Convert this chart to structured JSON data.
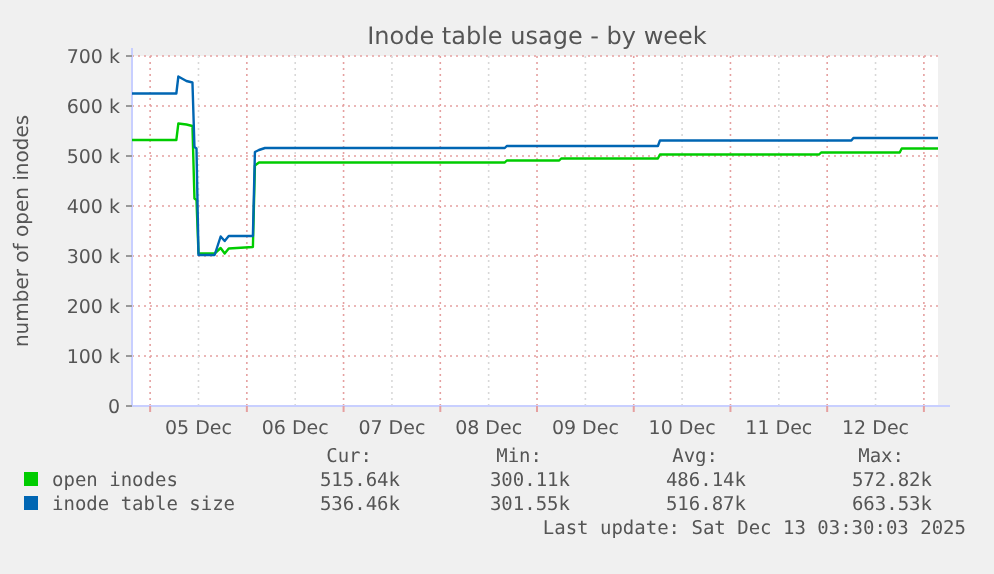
{
  "chart_data": {
    "type": "line",
    "title": "Inode table usage - by week",
    "ylabel": "number of open inodes",
    "legend": "bottom",
    "grid": true,
    "line_style": "solid",
    "xlim": [
      "2025-12-04T19:30",
      "2025-12-13T03:30"
    ],
    "xticks": [
      {
        "value": "2025-12-05T00:00",
        "label": null
      },
      {
        "value": "2025-12-05T12:00",
        "label": "05 Dec"
      },
      {
        "value": "2025-12-06T00:00",
        "label": null
      },
      {
        "value": "2025-12-06T12:00",
        "label": "06 Dec"
      },
      {
        "value": "2025-12-07T00:00",
        "label": null
      },
      {
        "value": "2025-12-07T12:00",
        "label": "07 Dec"
      },
      {
        "value": "2025-12-08T00:00",
        "label": null
      },
      {
        "value": "2025-12-08T12:00",
        "label": "08 Dec"
      },
      {
        "value": "2025-12-09T00:00",
        "label": null
      },
      {
        "value": "2025-12-09T12:00",
        "label": "09 Dec"
      },
      {
        "value": "2025-12-10T00:00",
        "label": null
      },
      {
        "value": "2025-12-10T12:00",
        "label": "10 Dec"
      },
      {
        "value": "2025-12-11T00:00",
        "label": null
      },
      {
        "value": "2025-12-11T12:00",
        "label": "11 Dec"
      },
      {
        "value": "2025-12-12T00:00",
        "label": null
      },
      {
        "value": "2025-12-12T12:00",
        "label": "12 Dec"
      },
      {
        "value": "2025-12-13T00:00",
        "label": null
      }
    ],
    "ylim": [
      0,
      700000
    ],
    "yticks": [
      {
        "value": 0,
        "label": "0"
      },
      {
        "value": 100000,
        "label": "100 k"
      },
      {
        "value": 200000,
        "label": "200 k"
      },
      {
        "value": 300000,
        "label": "300 k"
      },
      {
        "value": 400000,
        "label": "400 k"
      },
      {
        "value": 500000,
        "label": "500 k"
      },
      {
        "value": 600000,
        "label": "600 k"
      },
      {
        "value": 700000,
        "label": "700 k"
      }
    ],
    "series": [
      {
        "name": "open inodes",
        "color": "#00cc00",
        "x": [
          "2025-12-04T19:30",
          "2025-12-05T06:30",
          "2025-12-05T07:00",
          "2025-12-05T09:00",
          "2025-12-05T10:30",
          "2025-12-05T11:00",
          "2025-12-05T11:30",
          "2025-12-05T12:00",
          "2025-12-05T16:00",
          "2025-12-05T17:30",
          "2025-12-05T18:30",
          "2025-12-05T19:30",
          "2025-12-06T01:30",
          "2025-12-06T02:00",
          "2025-12-06T03:00",
          "2025-12-08T16:00",
          "2025-12-08T16:30",
          "2025-12-09T05:30",
          "2025-12-09T06:00",
          "2025-12-10T06:00",
          "2025-12-10T06:30",
          "2025-12-11T22:00",
          "2025-12-11T22:30",
          "2025-12-12T18:00",
          "2025-12-12T18:30",
          "2025-12-13T03:30"
        ],
        "values": [
          532000,
          532000,
          565000,
          563000,
          560000,
          415000,
          412000,
          305000,
          305000,
          316000,
          305000,
          315000,
          318000,
          481000,
          487000,
          487000,
          491000,
          491000,
          495000,
          495000,
          503000,
          503000,
          507000,
          507000,
          515000,
          515000
        ]
      },
      {
        "name": "inode table size",
        "color": "#0066b3",
        "x": [
          "2025-12-04T19:30",
          "2025-12-05T06:30",
          "2025-12-05T07:00",
          "2025-12-05T09:00",
          "2025-12-05T10:30",
          "2025-12-05T11:00",
          "2025-12-05T11:30",
          "2025-12-05T12:00",
          "2025-12-05T16:00",
          "2025-12-05T17:30",
          "2025-12-05T18:30",
          "2025-12-05T19:30",
          "2025-12-06T01:30",
          "2025-12-06T02:00",
          "2025-12-06T03:00",
          "2025-12-06T04:30",
          "2025-12-08T16:00",
          "2025-12-08T16:30",
          "2025-12-10T06:00",
          "2025-12-10T06:30",
          "2025-12-12T06:00",
          "2025-12-12T06:30",
          "2025-12-13T03:30"
        ],
        "values": [
          625000,
          625000,
          659000,
          650000,
          647000,
          518000,
          515000,
          302000,
          302000,
          339000,
          330000,
          340000,
          340000,
          508000,
          512000,
          516000,
          516000,
          520000,
          520000,
          531000,
          531000,
          536000,
          536000
        ]
      }
    ],
    "annotations": [
      "Cur:",
      "Min:",
      "Avg:",
      "Max:",
      "515.64k",
      "300.11k",
      "486.14k",
      "572.82k",
      "536.46k",
      "301.55k",
      "516.87k",
      "663.53k",
      "Last update: Sat Dec 13 03:30:03 2025"
    ]
  }
}
